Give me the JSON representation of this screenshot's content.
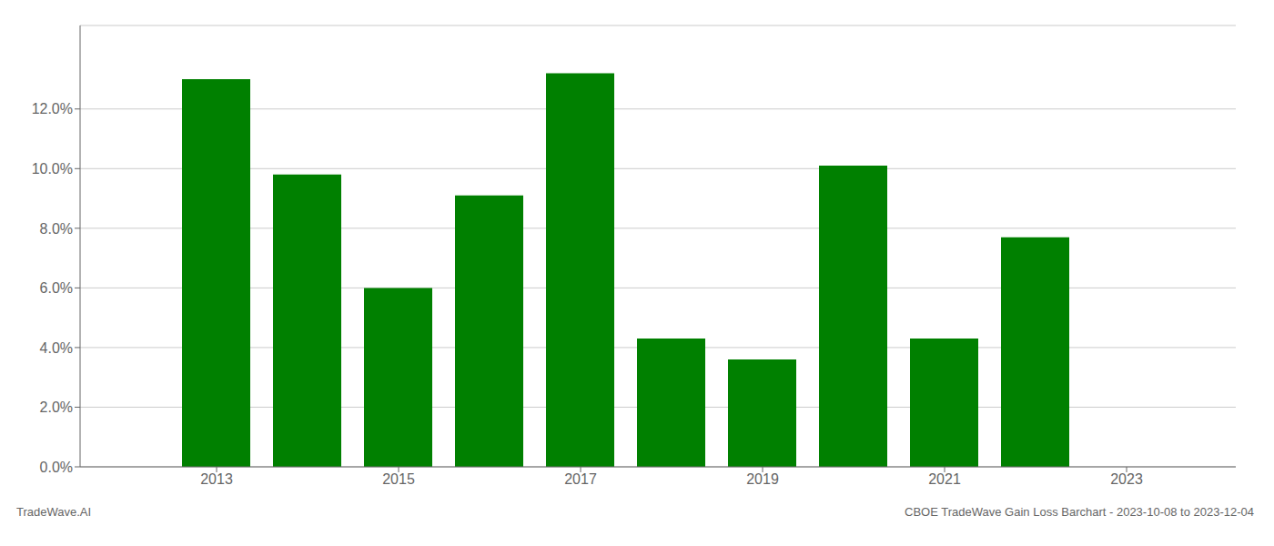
{
  "chart_data": {
    "type": "bar",
    "x": [
      2013,
      2014,
      2015,
      2016,
      2017,
      2018,
      2019,
      2020,
      2021,
      2022
    ],
    "values": [
      0.13,
      0.098,
      0.06,
      0.091,
      0.132,
      0.043,
      0.036,
      0.101,
      0.043,
      0.077
    ],
    "color": "#008000",
    "xlim": [
      2011.5,
      2024.2
    ],
    "xticks": [
      2013,
      2015,
      2017,
      2019,
      2021,
      2023
    ],
    "ylim": [
      0,
      0.148
    ],
    "yticks": [
      {
        "value": 0.0,
        "label": "0.0%"
      },
      {
        "value": 0.02,
        "label": "2.0%"
      },
      {
        "value": 0.04,
        "label": "4.0%"
      },
      {
        "value": 0.06,
        "label": "6.0%"
      },
      {
        "value": 0.08,
        "label": "8.0%"
      },
      {
        "value": 0.1,
        "label": "10.0%"
      },
      {
        "value": 0.12,
        "label": "12.0%"
      }
    ],
    "grid": true,
    "annotations": [
      "TradeWave.AI",
      "CBOE TradeWave Gain Loss Barchart - 2023-10-08 to 2023-12-04"
    ]
  }
}
